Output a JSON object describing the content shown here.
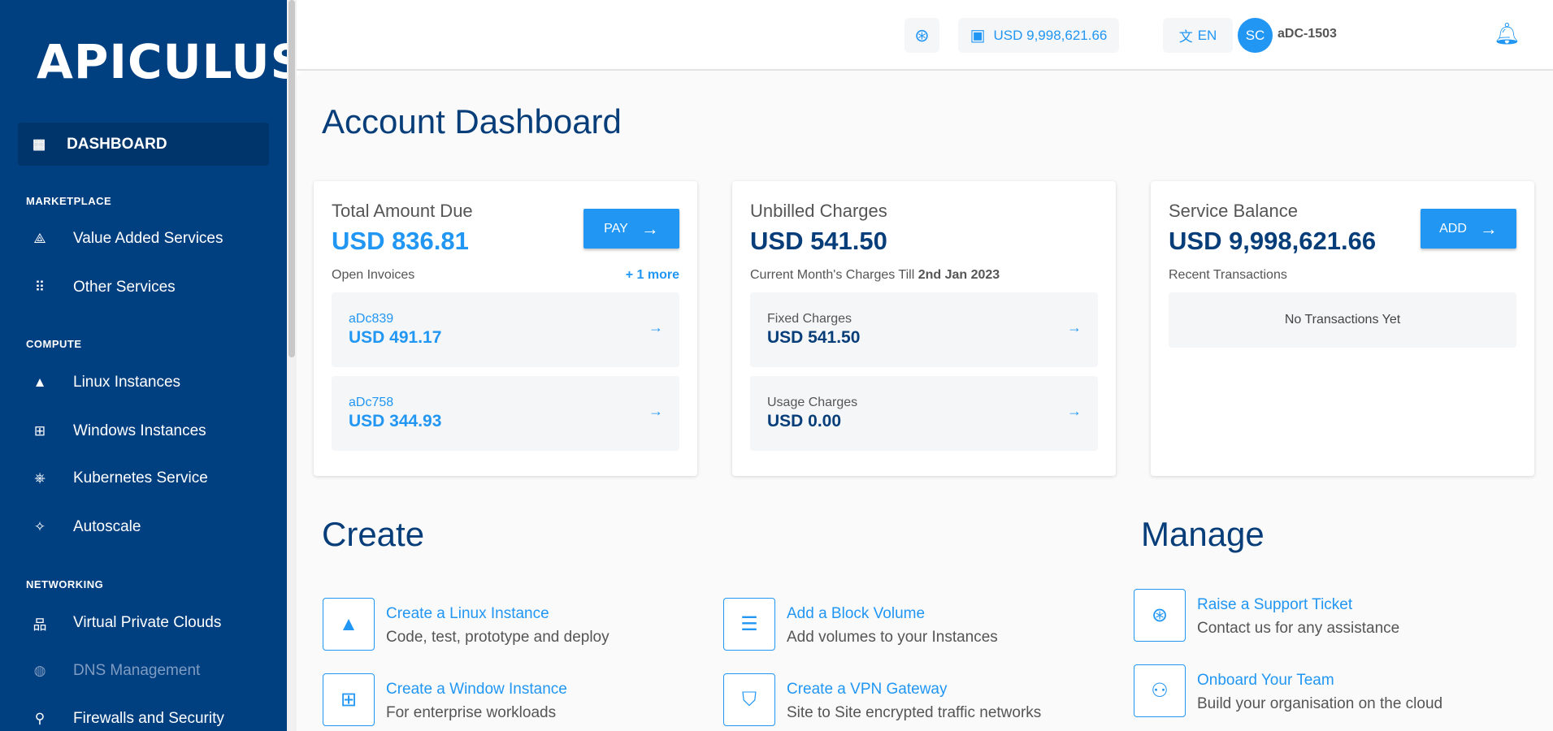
{
  "brand": "APICULUS",
  "sidebar": {
    "active": "DASHBOARD",
    "sections": [
      "MARKETPLACE",
      "COMPUTE",
      "NETWORKING"
    ],
    "items": [
      {
        "label": "Value Added Services",
        "icon": "shapes-icon"
      },
      {
        "label": "Other Services",
        "icon": "grid-icon"
      },
      {
        "label": "Linux Instances",
        "icon": "linux-icon"
      },
      {
        "label": "Windows Instances",
        "icon": "windows-icon"
      },
      {
        "label": "Kubernetes Service",
        "icon": "kubernetes-icon"
      },
      {
        "label": "Autoscale",
        "icon": "magic-wand-icon"
      },
      {
        "label": "Virtual Private Clouds",
        "icon": "network-icon"
      },
      {
        "label": "DNS Management",
        "icon": "globe-icon",
        "disabled": true
      },
      {
        "label": "Firewalls and Security",
        "icon": "firewall-icon"
      }
    ]
  },
  "header": {
    "balance": "USD 9,998,621.66",
    "language": "EN",
    "avatar_initials": "SC",
    "username": "aDC-1503"
  },
  "page_title": "Account Dashboard",
  "cards": {
    "due": {
      "title": "Total Amount Due",
      "amount": "USD 836.81",
      "button": "PAY",
      "sub": "Open Invoices",
      "more": "+ 1 more",
      "invoices": [
        {
          "id": "aDc839",
          "amount": "USD 491.17"
        },
        {
          "id": "aDc758",
          "amount": "USD 344.93"
        }
      ]
    },
    "unbilled": {
      "title": "Unbilled Charges",
      "amount": "USD 541.50",
      "sub_prefix": "Current Month's Charges Till ",
      "sub_date": "2nd Jan 2023",
      "rows": [
        {
          "label": "Fixed Charges",
          "amount": "USD 541.50"
        },
        {
          "label": "Usage Charges",
          "amount": "USD 0.00"
        }
      ]
    },
    "balance": {
      "title": "Service Balance",
      "amount": "USD 9,998,621.66",
      "button": "ADD",
      "sub": "Recent Transactions",
      "empty": "No Transactions Yet"
    }
  },
  "create": {
    "title": "Create",
    "items": [
      {
        "title": "Create a Linux Instance",
        "desc": "Code, test, prototype and deploy"
      },
      {
        "title": "Add a Block Volume",
        "desc": "Add volumes to your Instances"
      },
      {
        "title": "Create a Window Instance",
        "desc": "For enterprise workloads"
      },
      {
        "title": "Create a VPN Gateway",
        "desc": "Site to Site encrypted traffic networks"
      }
    ]
  },
  "manage": {
    "title": "Manage",
    "items": [
      {
        "title": "Raise a Support Ticket",
        "desc": "Contact us for any assistance"
      },
      {
        "title": "Onboard Your Team",
        "desc": "Build your organisation on the cloud"
      }
    ]
  },
  "colors": {
    "sidebar": "#003f80",
    "accent": "#2196f3",
    "heading": "#073e7a"
  }
}
